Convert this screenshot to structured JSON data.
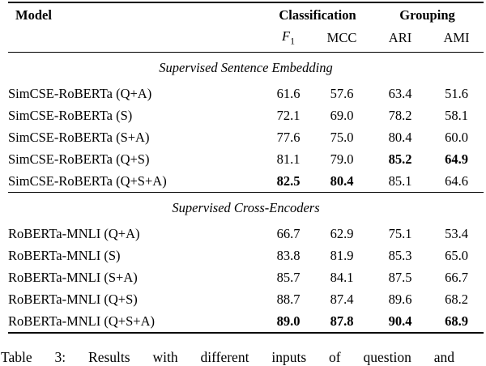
{
  "table": {
    "header": {
      "model_label": "Model",
      "groups": [
        {
          "label": "Classification"
        },
        {
          "label": "Grouping"
        }
      ],
      "metrics": [
        {
          "label": "F",
          "sub": "1"
        },
        {
          "label": "MCC"
        },
        {
          "label": "ARI"
        },
        {
          "label": "AMI"
        }
      ]
    },
    "sections": [
      {
        "title": "Supervised Sentence Embedding",
        "rows": [
          {
            "model": "SimCSE-RoBERTa (Q+A)",
            "values": [
              "61.6",
              "57.6",
              "63.4",
              "51.6"
            ],
            "bold": [
              false,
              false,
              false,
              false
            ]
          },
          {
            "model": "SimCSE-RoBERTa (S)",
            "values": [
              "72.1",
              "69.0",
              "78.2",
              "58.1"
            ],
            "bold": [
              false,
              false,
              false,
              false
            ]
          },
          {
            "model": "SimCSE-RoBERTa (S+A)",
            "values": [
              "77.6",
              "75.0",
              "80.4",
              "60.0"
            ],
            "bold": [
              false,
              false,
              false,
              false
            ]
          },
          {
            "model": "SimCSE-RoBERTa (Q+S)",
            "values": [
              "81.1",
              "79.0",
              "85.2",
              "64.9"
            ],
            "bold": [
              false,
              false,
              true,
              true
            ]
          },
          {
            "model": "SimCSE-RoBERTa (Q+S+A)",
            "values": [
              "82.5",
              "80.4",
              "85.1",
              "64.6"
            ],
            "bold": [
              true,
              true,
              false,
              false
            ]
          }
        ]
      },
      {
        "title": "Supervised Cross-Encoders",
        "rows": [
          {
            "model": "RoBERTa-MNLI (Q+A)",
            "values": [
              "66.7",
              "62.9",
              "75.1",
              "53.4"
            ],
            "bold": [
              false,
              false,
              false,
              false
            ]
          },
          {
            "model": "RoBERTa-MNLI (S)",
            "values": [
              "83.8",
              "81.9",
              "85.3",
              "65.0"
            ],
            "bold": [
              false,
              false,
              false,
              false
            ]
          },
          {
            "model": "RoBERTa-MNLI (S+A)",
            "values": [
              "85.7",
              "84.1",
              "87.5",
              "66.7"
            ],
            "bold": [
              false,
              false,
              false,
              false
            ]
          },
          {
            "model": "RoBERTa-MNLI (Q+S)",
            "values": [
              "88.7",
              "87.4",
              "89.6",
              "68.2"
            ],
            "bold": [
              false,
              false,
              false,
              false
            ]
          },
          {
            "model": "RoBERTa-MNLI (Q+S+A)",
            "values": [
              "89.0",
              "87.8",
              "90.4",
              "68.9"
            ],
            "bold": [
              true,
              true,
              true,
              true
            ]
          }
        ]
      }
    ],
    "caption_visible": "Table 3: Results with different inputs of question and"
  }
}
